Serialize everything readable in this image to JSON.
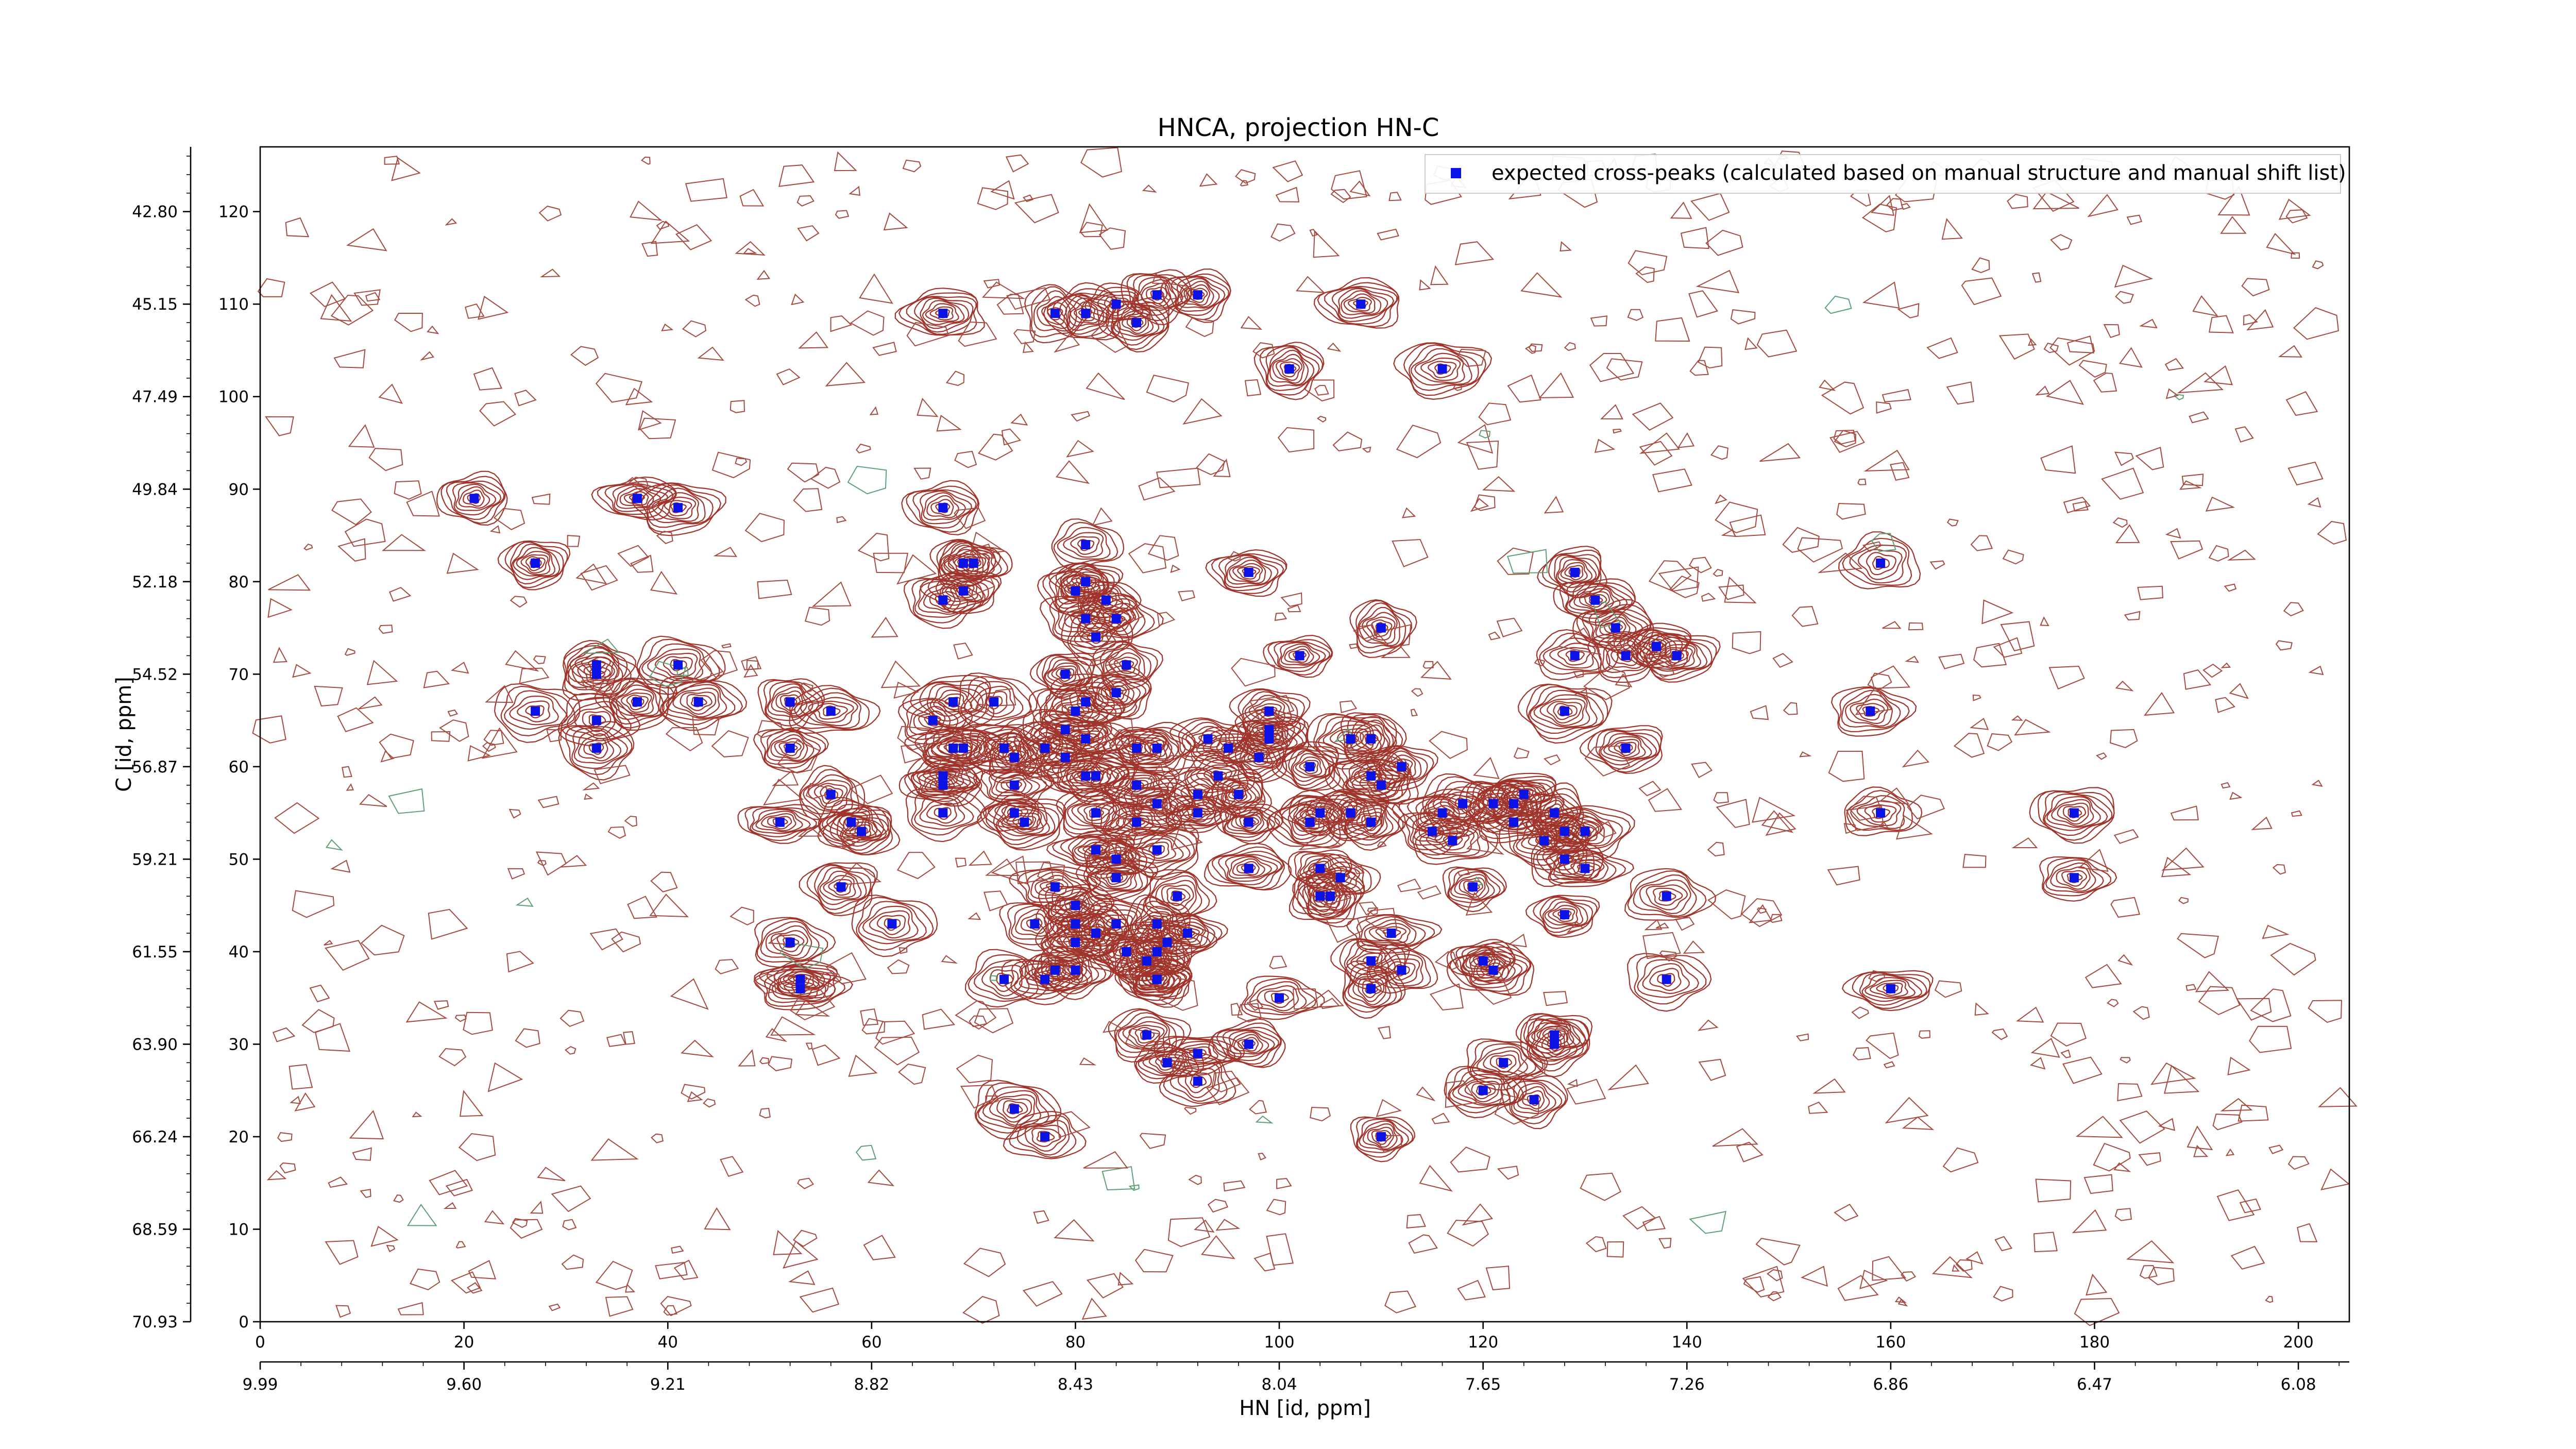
{
  "chart_data": {
    "type": "scatter",
    "title": "HNCA, projection HN-C",
    "xlabel": "HN [id, ppm]",
    "ylabel": "C [id, ppm]",
    "xlim": [
      0,
      205
    ],
    "ylim": [
      0,
      127
    ],
    "x_index_ticks": [
      "0",
      "20",
      "40",
      "60",
      "80",
      "100",
      "120",
      "140",
      "160",
      "180",
      "200"
    ],
    "y_index_ticks": [
      "0",
      "10",
      "20",
      "30",
      "40",
      "50",
      "60",
      "70",
      "80",
      "90",
      "100",
      "110",
      "120"
    ],
    "x_ppm_ticks": [
      "9.99",
      "9.60",
      "9.21",
      "8.82",
      "8.43",
      "8.04",
      "7.65",
      "7.26",
      "6.86",
      "6.47",
      "6.08"
    ],
    "y_ppm_ticks": [
      "70.93",
      "68.59",
      "66.24",
      "63.90",
      "61.55",
      "59.21",
      "56.87",
      "54.52",
      "52.18",
      "49.84",
      "47.49",
      "45.15",
      "42.80"
    ],
    "grid": false,
    "legend_position": "top-right",
    "colors": {
      "positive_contour": "#a0342b",
      "negative_contour": "#4f9a6f",
      "marker": "#0b12e6"
    },
    "series": [
      {
        "name": "expected cross-peaks (calculated based on manual structure and manual shift list)",
        "points": [
          [
            21,
            89
          ],
          [
            37,
            89
          ],
          [
            41,
            88
          ],
          [
            27,
            82
          ],
          [
            27,
            66
          ],
          [
            33,
            65
          ],
          [
            33,
            62
          ],
          [
            33,
            70
          ],
          [
            33,
            71
          ],
          [
            37,
            67
          ],
          [
            41,
            71
          ],
          [
            43,
            67
          ],
          [
            52,
            67
          ],
          [
            52,
            62
          ],
          [
            56,
            66
          ],
          [
            56,
            57
          ],
          [
            58,
            54
          ],
          [
            59,
            53
          ],
          [
            51,
            54
          ],
          [
            52,
            41
          ],
          [
            53,
            36
          ],
          [
            53,
            37
          ],
          [
            57,
            47
          ],
          [
            62,
            43
          ],
          [
            67,
            55
          ],
          [
            67,
            58
          ],
          [
            66,
            65
          ],
          [
            68,
            62
          ],
          [
            67,
            59
          ],
          [
            68,
            67
          ],
          [
            69,
            62
          ],
          [
            67,
            78
          ],
          [
            67,
            88
          ],
          [
            69,
            82
          ],
          [
            69,
            79
          ],
          [
            70,
            82
          ],
          [
            72,
            67
          ],
          [
            73,
            62
          ],
          [
            74,
            58
          ],
          [
            74,
            61
          ],
          [
            74,
            55
          ],
          [
            75,
            54
          ],
          [
            73,
            37
          ],
          [
            77,
            37
          ],
          [
            76,
            43
          ],
          [
            78,
            47
          ],
          [
            80,
            43
          ],
          [
            80,
            41
          ],
          [
            78,
            38
          ],
          [
            80,
            38
          ],
          [
            80,
            45
          ],
          [
            82,
            42
          ],
          [
            77,
            62
          ],
          [
            79,
            61
          ],
          [
            79,
            70
          ],
          [
            79,
            64
          ],
          [
            80,
            66
          ],
          [
            81,
            59
          ],
          [
            82,
            55
          ],
          [
            82,
            51
          ],
          [
            82,
            59
          ],
          [
            81,
            63
          ],
          [
            81,
            67
          ],
          [
            81,
            76
          ],
          [
            80,
            79
          ],
          [
            81,
            80
          ],
          [
            81,
            84
          ],
          [
            82,
            74
          ],
          [
            83,
            78
          ],
          [
            84,
            76
          ],
          [
            84,
            68
          ],
          [
            85,
            71
          ],
          [
            86,
            62
          ],
          [
            86,
            58
          ],
          [
            86,
            54
          ],
          [
            88,
            56
          ],
          [
            88,
            62
          ],
          [
            84,
            50
          ],
          [
            84,
            48
          ],
          [
            84,
            43
          ],
          [
            85,
            40
          ],
          [
            87,
            39
          ],
          [
            88,
            37
          ],
          [
            88,
            37
          ],
          [
            88,
            40
          ],
          [
            88,
            43
          ],
          [
            88,
            51
          ],
          [
            90,
            46
          ],
          [
            89,
            41
          ],
          [
            91,
            42
          ],
          [
            87,
            31
          ],
          [
            89,
            28
          ],
          [
            92,
            26
          ],
          [
            92,
            29
          ],
          [
            92,
            55
          ],
          [
            92,
            57
          ],
          [
            93,
            63
          ],
          [
            94,
            59
          ],
          [
            95,
            62
          ],
          [
            96,
            57
          ],
          [
            97,
            54
          ],
          [
            97,
            49
          ],
          [
            99,
            64
          ],
          [
            99,
            66
          ],
          [
            98,
            61
          ],
          [
            99,
            63
          ],
          [
            100,
            35
          ],
          [
            97,
            30
          ],
          [
            97,
            81
          ],
          [
            103,
            54
          ],
          [
            103,
            60
          ],
          [
            104,
            55
          ],
          [
            104,
            49
          ],
          [
            104,
            46
          ],
          [
            105,
            46
          ],
          [
            106,
            48
          ],
          [
            107,
            55
          ],
          [
            107,
            63
          ],
          [
            109,
            54
          ],
          [
            109,
            63
          ],
          [
            109,
            59
          ],
          [
            110,
            75
          ],
          [
            110,
            58
          ],
          [
            109,
            39
          ],
          [
            109,
            36
          ],
          [
            110,
            20
          ],
          [
            115,
            53
          ],
          [
            116,
            55
          ],
          [
            117,
            52
          ],
          [
            118,
            56
          ],
          [
            121,
            56
          ],
          [
            119,
            47
          ],
          [
            120,
            39
          ],
          [
            121,
            38
          ],
          [
            123,
            54
          ],
          [
            123,
            56
          ],
          [
            124,
            57
          ],
          [
            126,
            52
          ],
          [
            127,
            55
          ],
          [
            128,
            53
          ],
          [
            128,
            50
          ],
          [
            128,
            44
          ],
          [
            127,
            31
          ],
          [
            127,
            30
          ],
          [
            125,
            24
          ],
          [
            130,
            49
          ],
          [
            130,
            53
          ],
          [
            129,
            72
          ],
          [
            128,
            66
          ],
          [
            129,
            81
          ],
          [
            131,
            78
          ],
          [
            133,
            75
          ],
          [
            134,
            72
          ],
          [
            137,
            73
          ],
          [
            139,
            72
          ],
          [
            134,
            62
          ],
          [
            138,
            37
          ],
          [
            138,
            46
          ],
          [
            158,
            66
          ],
          [
            159,
            55
          ],
          [
            159,
            82
          ],
          [
            160,
            36
          ],
          [
            178,
            55
          ],
          [
            178,
            48
          ],
          [
            101,
            103
          ],
          [
            108,
            110
          ],
          [
            116,
            103
          ],
          [
            84,
            110
          ],
          [
            86,
            108
          ],
          [
            88,
            111
          ],
          [
            92,
            111
          ],
          [
            78,
            109
          ],
          [
            81,
            109
          ],
          [
            67,
            109
          ],
          [
            74,
            23
          ],
          [
            77,
            20
          ],
          [
            102,
            72
          ],
          [
            111,
            42
          ],
          [
            112,
            60
          ],
          [
            112,
            38
          ],
          [
            120,
            25
          ],
          [
            122,
            28
          ]
        ]
      }
    ]
  }
}
